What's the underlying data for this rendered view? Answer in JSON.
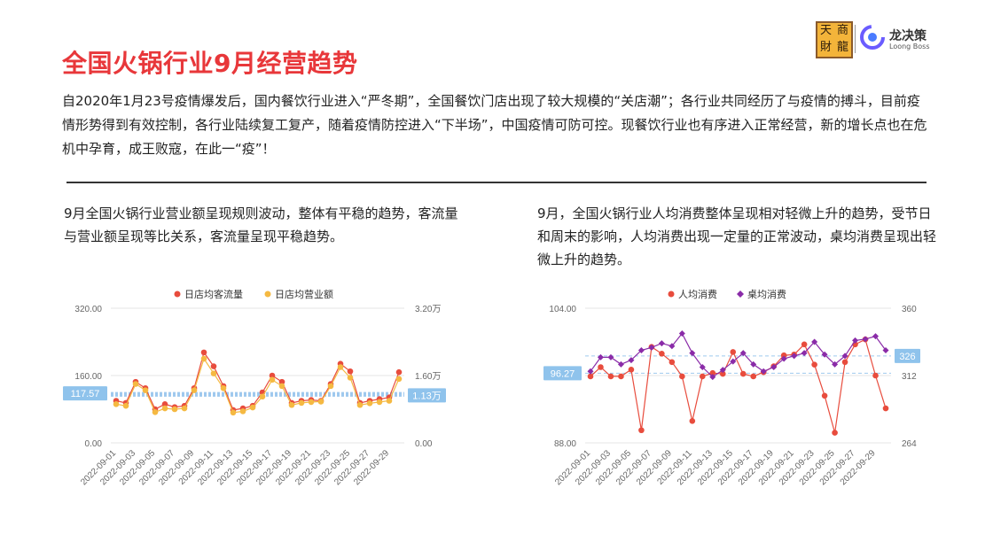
{
  "page": {
    "title": "全国火锅行业9月经营趋势",
    "intro": "自2020年1月23号疫情爆发后，国内餐饮行业进入“严冬期”，全国餐饮门店出现了较大规模的“关店潮”；各行业共同经历了与疫情的搏斗，目前疫情形势得到有效控制，各行业陆续复工复产，随着疫情防控进入“下半场”，中国疫情可防可控。现餐饮行业也有序进入正常经营，新的增长点也在危机中孕育，成王败寇，在此一“疫”！",
    "left_text": "9月全国火锅行业营业额呈现规则波动，整体有平稳的趋势，客流量与营业额呈现等比关系，客流量呈现平稳趋势。",
    "right_text": "9月，全国火锅行业人均消费整体呈现相对轻微上升的趋势，受节日和周末的影响，人均消费出现一定量的正常波动，桌均消费呈现出轻微上升的趋势。"
  },
  "logo": {
    "chars": [
      "天",
      "商",
      "財",
      "龍"
    ],
    "brand_cn": "龙决策",
    "brand_en": "Loong Boss"
  },
  "chart_data": [
    {
      "type": "line",
      "x": [
        "2022-09-01",
        "2022-09-02",
        "2022-09-03",
        "2022-09-04",
        "2022-09-05",
        "2022-09-06",
        "2022-09-07",
        "2022-09-08",
        "2022-09-09",
        "2022-09-10",
        "2022-09-11",
        "2022-09-12",
        "2022-09-13",
        "2022-09-14",
        "2022-09-15",
        "2022-09-16",
        "2022-09-17",
        "2022-09-18",
        "2022-09-19",
        "2022-09-20",
        "2022-09-21",
        "2022-09-22",
        "2022-09-23",
        "2022-09-24",
        "2022-09-25",
        "2022-09-26",
        "2022-09-27",
        "2022-09-28",
        "2022-09-29",
        "2022-09-30"
      ],
      "x_tick_labels": [
        "2022-09-01",
        "2022-09-03",
        "2022-09-05",
        "2022-09-07",
        "2022-09-09",
        "2022-09-11",
        "2022-09-13",
        "2022-09-15",
        "2022-09-17",
        "2022-09-19",
        "2022-09-21",
        "2022-09-23",
        "2022-09-25",
        "2022-09-27",
        "2022-09-29"
      ],
      "series": [
        {
          "name": "日店均客流量",
          "axis": "left",
          "color": "#e84c3d",
          "values": [
            100,
            95,
            145,
            130,
            80,
            92,
            85,
            88,
            130,
            215,
            182,
            135,
            78,
            82,
            88,
            120,
            160,
            145,
            95,
            100,
            102,
            100,
            140,
            188,
            170,
            95,
            100,
            104,
            108,
            168
          ]
        },
        {
          "name": "日店均营业额",
          "axis": "right",
          "color": "#f5b942",
          "values": [
            0.92,
            0.88,
            1.4,
            1.25,
            0.73,
            0.82,
            0.8,
            0.82,
            1.25,
            2.0,
            1.65,
            1.3,
            0.72,
            0.75,
            0.84,
            1.1,
            1.5,
            1.35,
            0.9,
            0.95,
            0.97,
            0.98,
            1.35,
            1.8,
            1.55,
            0.9,
            0.94,
            0.97,
            1.0,
            1.52
          ]
        }
      ],
      "y_left": {
        "range": [
          0,
          320
        ],
        "ticks": [
          "0.00",
          "160.00",
          "320.00"
        ]
      },
      "y_right": {
        "range": [
          0,
          3.2
        ],
        "ticks": [
          "0.00",
          "1.60万",
          "3.20万"
        ]
      },
      "reference_lines": [
        {
          "axis": "left",
          "value": 117.57,
          "label": "117.57"
        },
        {
          "axis": "right",
          "value": 1.13,
          "label": "1.13万"
        }
      ],
      "legend": "top-center",
      "grid": "horizontal"
    },
    {
      "type": "line",
      "x": [
        "2022-09-01",
        "2022-09-02",
        "2022-09-03",
        "2022-09-04",
        "2022-09-05",
        "2022-09-06",
        "2022-09-07",
        "2022-09-08",
        "2022-09-09",
        "2022-09-10",
        "2022-09-11",
        "2022-09-12",
        "2022-09-13",
        "2022-09-14",
        "2022-09-15",
        "2022-09-16",
        "2022-09-17",
        "2022-09-18",
        "2022-09-19",
        "2022-09-20",
        "2022-09-21",
        "2022-09-22",
        "2022-09-23",
        "2022-09-24",
        "2022-09-25",
        "2022-09-26",
        "2022-09-27",
        "2022-09-28",
        "2022-09-29",
        "2022-09-30"
      ],
      "x_tick_labels": [
        "2022-09-01",
        "2022-09-03",
        "2022-09-05",
        "2022-09-07",
        "2022-09-09",
        "2022-09-11",
        "2022-09-13",
        "2022-09-15",
        "2022-09-17",
        "2022-09-19",
        "2022-09-21",
        "2022-09-23",
        "2022-09-25",
        "2022-09-27",
        "2022-09-29"
      ],
      "series": [
        {
          "name": "人均消费",
          "axis": "left",
          "color": "#e84c3d",
          "values": [
            95.9,
            97.0,
            95.9,
            95.9,
            96.7,
            89.5,
            99.4,
            98.6,
            97.6,
            95.9,
            90.6,
            95.9,
            96.3,
            96.2,
            98.8,
            96.2,
            95.9,
            96.4,
            97.1,
            98.4,
            98.5,
            99.7,
            97.3,
            93.6,
            89.2,
            97.6,
            99.7,
            100.3,
            96.0,
            92.1
          ]
        },
        {
          "name": "桌均消费",
          "axis": "right",
          "color": "#8a2ba8",
          "values": [
            315,
            325,
            325,
            320,
            323,
            330,
            332,
            335,
            333,
            342,
            328,
            318,
            311,
            316,
            322,
            328,
            320,
            315,
            318,
            324,
            326,
            328,
            336,
            327,
            320,
            326,
            337,
            338,
            340,
            330
          ]
        }
      ],
      "y_left": {
        "range": [
          88,
          104
        ],
        "ticks": [
          "88.00",
          "96.00",
          "104.00"
        ]
      },
      "y_right": {
        "range": [
          264,
          360
        ],
        "ticks": [
          "264",
          "312",
          "360"
        ]
      },
      "reference_lines": [
        {
          "axis": "left",
          "value": 96.27,
          "label": "96.27"
        },
        {
          "axis": "right",
          "value": 326,
          "label": "326"
        }
      ],
      "legend": "top-center",
      "grid": "horizontal"
    }
  ]
}
